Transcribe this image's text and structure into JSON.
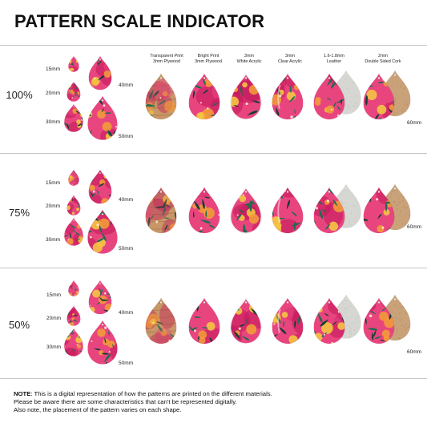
{
  "title": "PATTERN SCALE INDICATOR",
  "columns": [
    {
      "line1": "Transparent Print",
      "line2": "3mm Plywood"
    },
    {
      "line1": "Bright Print",
      "line2": "3mm Plywood"
    },
    {
      "line1": "3mm",
      "line2": "White Acrylic"
    },
    {
      "line1": "3mm",
      "line2": "Clear Acrylic"
    },
    {
      "line1": "1.6-1.8mm",
      "line2": "Leather"
    },
    {
      "line1": "2mm",
      "line2": "Double Sided Cork"
    }
  ],
  "rows": [
    {
      "scale": "100%",
      "sizes": [
        "15mm",
        "20mm",
        "30mm",
        "40mm",
        "50mm"
      ],
      "width_label": "60mm"
    },
    {
      "scale": "75%",
      "sizes": [
        "15mm",
        "20mm",
        "30mm",
        "40mm",
        "50mm"
      ],
      "width_label": "60mm"
    },
    {
      "scale": "50%",
      "sizes": [
        "15mm",
        "20mm",
        "30mm",
        "40mm",
        "50mm"
      ],
      "width_label": "60mm"
    }
  ],
  "note": {
    "label": "NOTE",
    "line1": ": This is a digital representation of how the patterns are printed on the different materials.",
    "line2": "Please be aware there are some characteristics that can't be represented digitally.",
    "line3": "Also note, the placement of the pattern varies on each shape."
  },
  "colors": {
    "pink": "#e8457f",
    "magenta": "#c2185b",
    "orange": "#f29a3a",
    "yellow": "#f4c542",
    "leaf_green": "#1f6b4f",
    "leaf_dark": "#123d36",
    "plywood": "#c89768",
    "leather": "#d6d6d2",
    "cork": "#c9a27a"
  }
}
